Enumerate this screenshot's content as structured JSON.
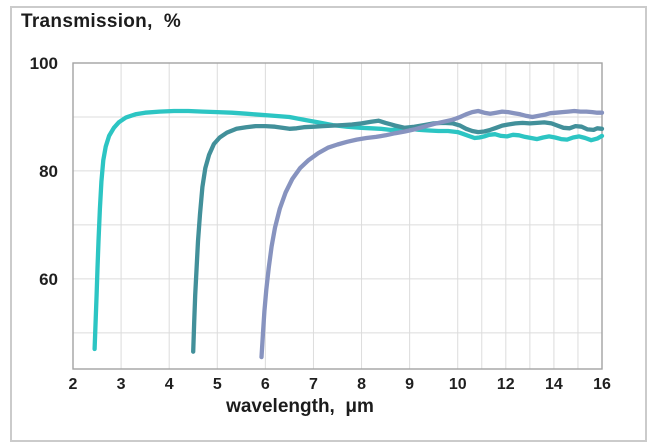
{
  "figure": {
    "title": "Transmission,  %",
    "x_axis_label": "wavelength,  μm"
  },
  "colors": {
    "turquoise_series": "#2CC5C3",
    "teal_series": "#42909A",
    "slate_blue_series": "#8793BF",
    "gridline": "#dcdcdc",
    "plot_border": "#a3a3a3",
    "figure_border": "#cbcbcb",
    "text": "#1c1c1c"
  },
  "chart_data": {
    "type": "line",
    "title": "Transmission, %",
    "xlabel": "wavelength, μm",
    "ylabel": "Transmission, %",
    "grid": true,
    "legend": "none",
    "xlim": [
      2,
      16
    ],
    "ylim": [
      43.3,
      100
    ],
    "x_scale_note": "equal spacing per labeled tick: linear 2-10, compressed (2 units per step) 10-16",
    "x_tick_values": [
      2,
      3,
      4,
      5,
      6,
      7,
      8,
      9,
      10,
      12,
      14,
      16
    ],
    "x_tick_labels": [
      "2",
      "3",
      "4",
      "5",
      "6",
      "7",
      "8",
      "9",
      "10",
      "12",
      "14",
      "16"
    ],
    "x_minor_grid_values": [
      11,
      13,
      15
    ],
    "y_grid_values": [
      50,
      60,
      70,
      80,
      90
    ],
    "y_tick_labels": [
      {
        "value": 100,
        "label": "100"
      },
      {
        "value": 80,
        "label": "80"
      },
      {
        "value": 60,
        "label": "60"
      }
    ],
    "series": [
      {
        "name": "turquoise-curve-onset-2.5um",
        "color": "#2CC5C3",
        "points": [
          [
            2.45,
            47
          ],
          [
            2.47,
            52
          ],
          [
            2.49,
            57
          ],
          [
            2.51,
            62
          ],
          [
            2.53,
            67
          ],
          [
            2.56,
            73
          ],
          [
            2.59,
            78
          ],
          [
            2.63,
            82
          ],
          [
            2.68,
            84.5
          ],
          [
            2.75,
            86.5
          ],
          [
            2.85,
            88
          ],
          [
            2.95,
            89
          ],
          [
            3.1,
            89.9
          ],
          [
            3.3,
            90.5
          ],
          [
            3.5,
            90.8
          ],
          [
            3.8,
            91
          ],
          [
            4.1,
            91.1
          ],
          [
            4.4,
            91.1
          ],
          [
            4.7,
            91
          ],
          [
            5,
            90.9
          ],
          [
            5.3,
            90.8
          ],
          [
            5.6,
            90.6
          ],
          [
            5.9,
            90.4
          ],
          [
            6.2,
            90.2
          ],
          [
            6.5,
            90
          ],
          [
            6.8,
            89.5
          ],
          [
            7.1,
            89
          ],
          [
            7.4,
            88.5
          ],
          [
            7.7,
            88.2
          ],
          [
            8,
            88
          ],
          [
            8.2,
            87.9
          ],
          [
            8.4,
            87.8
          ],
          [
            8.6,
            87.6
          ],
          [
            8.8,
            87.7
          ],
          [
            9,
            87.8
          ],
          [
            9.2,
            87.6
          ],
          [
            9.4,
            87.5
          ],
          [
            9.6,
            87.4
          ],
          [
            9.8,
            87.4
          ],
          [
            10,
            87.2
          ],
          [
            10.2,
            86.9
          ],
          [
            10.45,
            86.5
          ],
          [
            10.7,
            86.1
          ],
          [
            10.9,
            86.2
          ],
          [
            11.1,
            86.4
          ],
          [
            11.3,
            86.7
          ],
          [
            11.55,
            86.8
          ],
          [
            11.8,
            86.5
          ],
          [
            12.05,
            86.4
          ],
          [
            12.3,
            86.7
          ],
          [
            12.55,
            86.6
          ],
          [
            12.8,
            86.3
          ],
          [
            13.05,
            86.1
          ],
          [
            13.3,
            85.9
          ],
          [
            13.55,
            86.2
          ],
          [
            13.8,
            86.4
          ],
          [
            14.05,
            86.2
          ],
          [
            14.3,
            85.9
          ],
          [
            14.55,
            85.8
          ],
          [
            14.8,
            86.2
          ],
          [
            15.05,
            86.4
          ],
          [
            15.3,
            86.1
          ],
          [
            15.55,
            85.7
          ],
          [
            15.8,
            86
          ],
          [
            16,
            86.5
          ]
        ]
      },
      {
        "name": "teal-curve-onset-4.5um",
        "color": "#42909A",
        "points": [
          [
            4.5,
            46.5
          ],
          [
            4.52,
            52
          ],
          [
            4.54,
            57
          ],
          [
            4.57,
            62
          ],
          [
            4.6,
            67
          ],
          [
            4.64,
            72
          ],
          [
            4.69,
            77
          ],
          [
            4.75,
            80.5
          ],
          [
            4.83,
            83
          ],
          [
            4.93,
            85
          ],
          [
            5.05,
            86.2
          ],
          [
            5.2,
            87.1
          ],
          [
            5.4,
            87.8
          ],
          [
            5.6,
            88.1
          ],
          [
            5.8,
            88.3
          ],
          [
            6,
            88.3
          ],
          [
            6.2,
            88.2
          ],
          [
            6.35,
            88
          ],
          [
            6.5,
            87.8
          ],
          [
            6.65,
            87.9
          ],
          [
            6.8,
            88.1
          ],
          [
            7,
            88.2
          ],
          [
            7.2,
            88.3
          ],
          [
            7.4,
            88.4
          ],
          [
            7.6,
            88.5
          ],
          [
            7.8,
            88.6
          ],
          [
            8,
            88.8
          ],
          [
            8.2,
            89.1
          ],
          [
            8.35,
            89.3
          ],
          [
            8.5,
            88.9
          ],
          [
            8.7,
            88.4
          ],
          [
            8.9,
            88
          ],
          [
            9.1,
            88.2
          ],
          [
            9.3,
            88.5
          ],
          [
            9.5,
            88.8
          ],
          [
            9.7,
            88.9
          ],
          [
            9.9,
            88.8
          ],
          [
            10.1,
            88.4
          ],
          [
            10.35,
            87.8
          ],
          [
            10.6,
            87.4
          ],
          [
            10.85,
            87.2
          ],
          [
            11.1,
            87.3
          ],
          [
            11.35,
            87.6
          ],
          [
            11.6,
            88
          ],
          [
            11.85,
            88.4
          ],
          [
            12.1,
            88.6
          ],
          [
            12.4,
            88.8
          ],
          [
            12.7,
            88.9
          ],
          [
            13,
            88.8
          ],
          [
            13.3,
            88.9
          ],
          [
            13.6,
            89
          ],
          [
            13.9,
            88.8
          ],
          [
            14.15,
            88.4
          ],
          [
            14.4,
            88
          ],
          [
            14.65,
            87.9
          ],
          [
            14.9,
            88.3
          ],
          [
            15.15,
            88.2
          ],
          [
            15.4,
            87.7
          ],
          [
            15.65,
            87.6
          ],
          [
            15.8,
            87.9
          ],
          [
            16,
            87.8
          ]
        ]
      },
      {
        "name": "slate-blue-curve-onset-5.9um",
        "color": "#8793BF",
        "points": [
          [
            5.92,
            45.5
          ],
          [
            5.95,
            50
          ],
          [
            5.98,
            54
          ],
          [
            6.02,
            58
          ],
          [
            6.07,
            62
          ],
          [
            6.13,
            66
          ],
          [
            6.2,
            69.5
          ],
          [
            6.3,
            73
          ],
          [
            6.42,
            76
          ],
          [
            6.56,
            78.5
          ],
          [
            6.72,
            80.5
          ],
          [
            6.9,
            82
          ],
          [
            7.1,
            83.3
          ],
          [
            7.3,
            84.3
          ],
          [
            7.5,
            84.9
          ],
          [
            7.7,
            85.4
          ],
          [
            7.9,
            85.8
          ],
          [
            8.1,
            86.1
          ],
          [
            8.3,
            86.3
          ],
          [
            8.5,
            86.6
          ],
          [
            8.7,
            87
          ],
          [
            8.9,
            87.3
          ],
          [
            9.1,
            87.7
          ],
          [
            9.3,
            88.2
          ],
          [
            9.5,
            88.7
          ],
          [
            9.7,
            89.1
          ],
          [
            9.9,
            89.5
          ],
          [
            10.1,
            90
          ],
          [
            10.35,
            90.5
          ],
          [
            10.6,
            90.9
          ],
          [
            10.85,
            91.1
          ],
          [
            11.1,
            90.8
          ],
          [
            11.35,
            90.6
          ],
          [
            11.6,
            90.8
          ],
          [
            11.85,
            91
          ],
          [
            12.1,
            90.9
          ],
          [
            12.35,
            90.7
          ],
          [
            12.6,
            90.5
          ],
          [
            12.85,
            90.2
          ],
          [
            13.1,
            90
          ],
          [
            13.35,
            90.2
          ],
          [
            13.6,
            90.4
          ],
          [
            13.85,
            90.7
          ],
          [
            14.1,
            90.8
          ],
          [
            14.35,
            90.9
          ],
          [
            14.6,
            91
          ],
          [
            14.85,
            91.1
          ],
          [
            15.1,
            91
          ],
          [
            15.35,
            91
          ],
          [
            15.6,
            90.9
          ],
          [
            15.8,
            90.8
          ],
          [
            16,
            90.8
          ]
        ]
      }
    ]
  }
}
